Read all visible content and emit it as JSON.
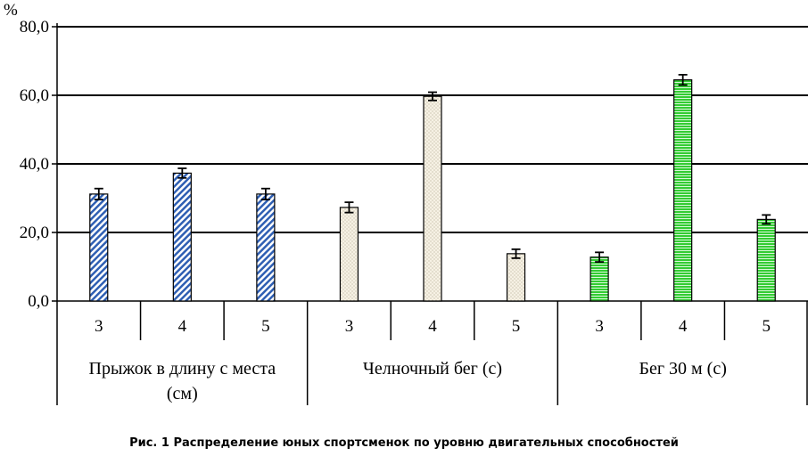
{
  "caption": "Рис. 1 Распределение юных спортсменок по уровню двигательных способностей",
  "chart_data": {
    "type": "bar",
    "y_unit": "%",
    "ylim": [
      0,
      80
    ],
    "yticks": [
      0,
      20,
      40,
      60,
      80
    ],
    "ytick_labels": [
      "0,0",
      "20,0",
      "40,0",
      "60,0",
      "80,0"
    ],
    "grid": true,
    "groups": [
      {
        "label_lines": [
          "Прыжок в длину с места",
          "(см)"
        ],
        "categories": [
          "3",
          "4",
          "5"
        ],
        "values": [
          31.2,
          37.3,
          31.2
        ],
        "errors": [
          1.6,
          1.4,
          1.6
        ],
        "fill": "hatch-blue",
        "color": "#2f5fb3"
      },
      {
        "label_lines": [
          "Челночный бег (с)"
        ],
        "categories": [
          "3",
          "4",
          "5"
        ],
        "values": [
          27.3,
          59.7,
          13.8
        ],
        "errors": [
          1.5,
          1.2,
          1.3
        ],
        "fill": "dots-cream",
        "color": "#f6f1e4"
      },
      {
        "label_lines": [
          "Бег 30 м (с)"
        ],
        "categories": [
          "3",
          "4",
          "5"
        ],
        "values": [
          12.8,
          64.5,
          23.8
        ],
        "errors": [
          1.4,
          1.5,
          1.3
        ],
        "fill": "stripes-green",
        "color": "#33cc33"
      }
    ]
  }
}
